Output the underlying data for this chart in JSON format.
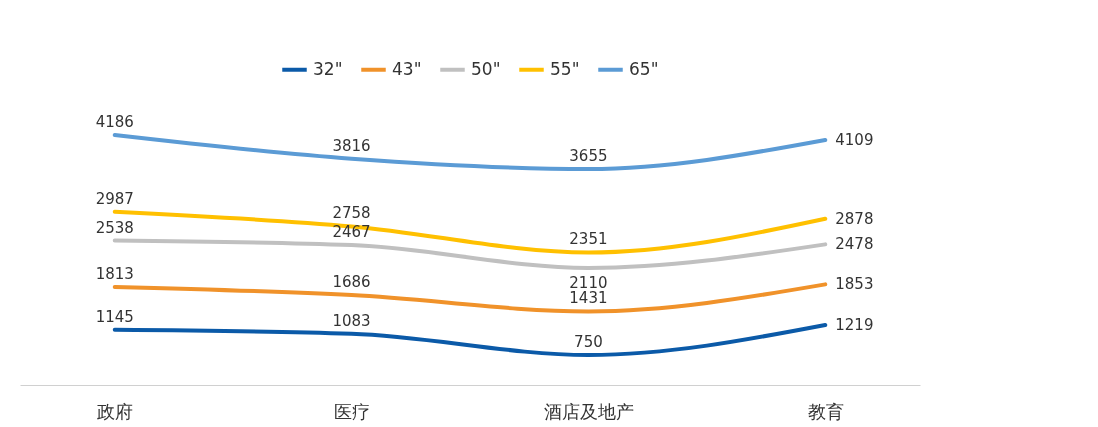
{
  "chart_data": {
    "type": "line",
    "categories": [
      "政府",
      "医疗",
      "酒店及地产",
      "教育"
    ],
    "series": [
      {
        "name": "32\"",
        "color": "#0b5aa8",
        "values": [
          1145,
          1083,
          750,
          1219
        ]
      },
      {
        "name": "43\"",
        "color": "#f0922a",
        "values": [
          1813,
          1686,
          1431,
          1853
        ]
      },
      {
        "name": "50\"",
        "color": "#c0c0c0",
        "values": [
          2538,
          2467,
          2110,
          2478
        ]
      },
      {
        "name": "55\"",
        "color": "#ffc000",
        "values": [
          2987,
          2758,
          2351,
          2878
        ]
      },
      {
        "name": "65\"",
        "color": "#5b9bd5",
        "values": [
          4186,
          3816,
          3655,
          4109
        ]
      }
    ],
    "data_labels": true,
    "legend": "top",
    "grid": false
  }
}
